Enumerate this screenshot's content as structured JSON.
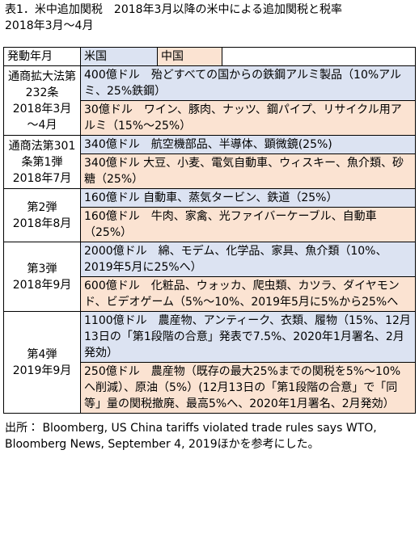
{
  "title_lines": [
    "表1．米中追加関税　2018年3月以降の米中による追加関税と税率",
    "2018年3月～4月"
  ],
  "table": {
    "header": [
      "発動年月",
      "米国",
      "中国"
    ],
    "rows": [
      {
        "period": [
          "通商拡大法第",
          "232条",
          "2018年3月",
          "～4月"
        ],
        "us": "400億ドル　殆どすべての国からの鉄鋼アルミ製品（10%アルミ、25%鉄鋼）",
        "china": "30億ドル　ワイン、豚肉、ナッツ、鋼パイプ、リサイクル用アルミ（15%～25%）"
      },
      {
        "period": [
          "通商法第301",
          "条第1弾",
          "2018年7月"
        ],
        "us": "340億ドル　航空機部品、半導体、顕微鏡(25%)",
        "china": "340億ドル 大豆、小麦、電気自動車、ウィスキー、魚介類、砂糖（25%）"
      },
      {
        "period": [
          "第2弾",
          "2018年8月"
        ],
        "us": "160億ドル 自動車、蒸気タービン、鉄道（25%）",
        "china": "160億ドル　牛肉、家禽、光ファイバーケーブル、自動車（25%）"
      },
      {
        "period": [
          "第3弾",
          "2018年9月"
        ],
        "us": "2000億ドル　綿、モデム、化学品、家具、魚介類（10%、2019年5月に25%へ）",
        "china": "600億ドル　化粧品、ウォッカ、爬虫類、カツラ、ダイヤモンド、ビデオゲーム（5%～10%、2019年5月に5%から25%へ"
      },
      {
        "period": [
          "第4弾",
          "2019年9月"
        ],
        "us": "1100億ドル　農産物、アンティーク、衣類、履物（15%、12月13日の「第1段階の合意」発表で7.5%、2020年1月署名、2月発効）",
        "china": "250億ドル　農産物（既存の最大25%までの関税を5%～10%へ削減）、原油（5%）(12月13日の「第1段階の合意」で「同等」量の関税撤廃、最高5%へ、2020年1月署名、2月発効）"
      }
    ]
  },
  "source": "出所： Bloomberg, US China tariffs violated trade rules says WTO, Bloomberg News, September 4, 2019ほかを参考にした。"
}
